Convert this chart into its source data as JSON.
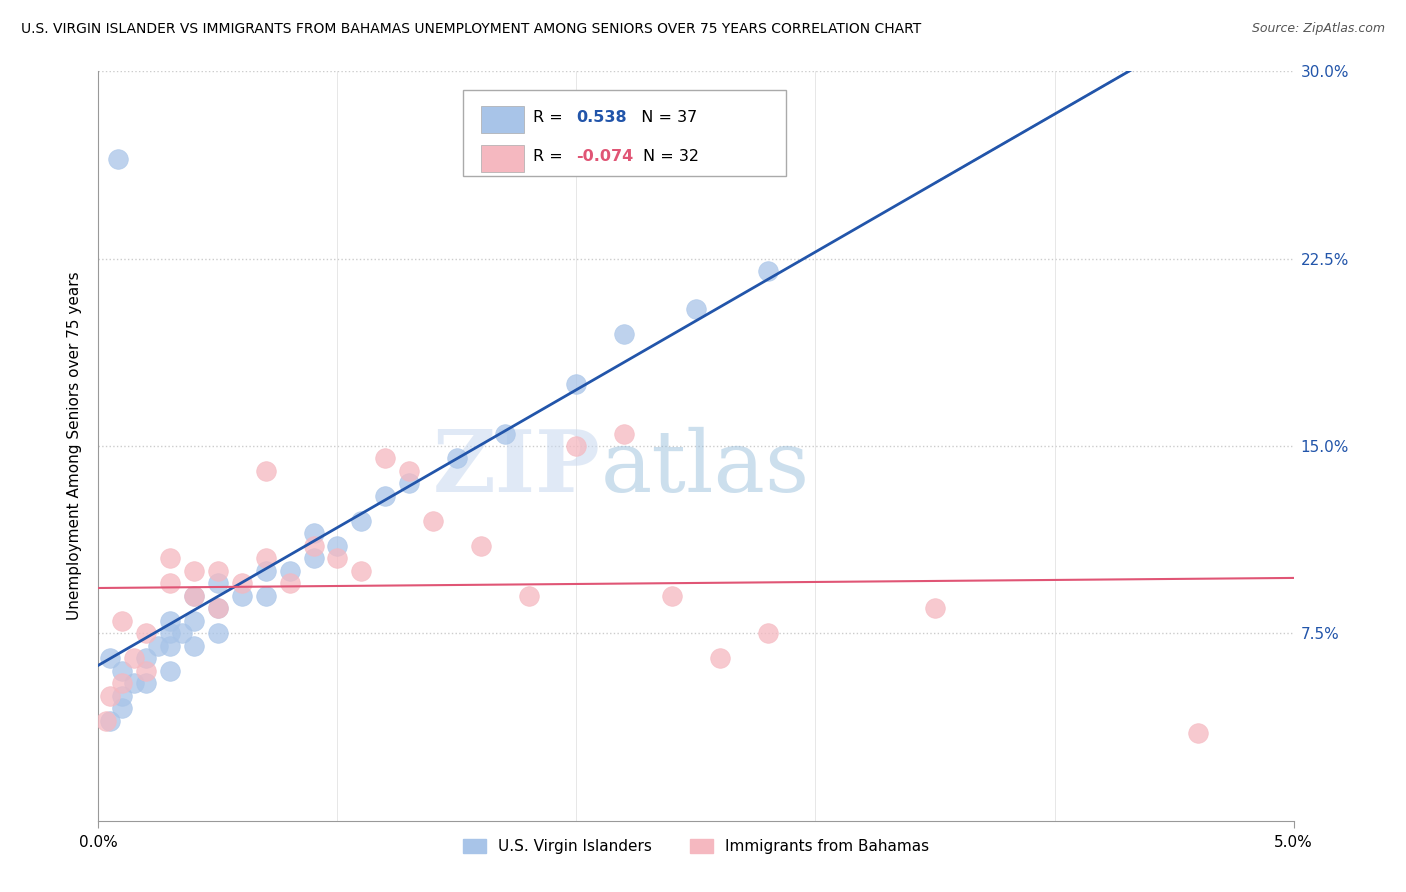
{
  "title": "U.S. VIRGIN ISLANDER VS IMMIGRANTS FROM BAHAMAS UNEMPLOYMENT AMONG SENIORS OVER 75 YEARS CORRELATION CHART",
  "source": "Source: ZipAtlas.com",
  "ylabel": "Unemployment Among Seniors over 75 years",
  "xmin": 0.0,
  "xmax": 0.05,
  "ymin": 0.0,
  "ymax": 0.3,
  "yticks": [
    0.0,
    0.075,
    0.15,
    0.225,
    0.3
  ],
  "ytick_labels": [
    "",
    "7.5%",
    "15.0%",
    "22.5%",
    "30.0%"
  ],
  "xtick_labels": [
    "0.0%",
    "5.0%"
  ],
  "series1_label": "U.S. Virgin Islanders",
  "series1_R": "0.538",
  "series1_N": "37",
  "series1_color": "#a8c4e8",
  "series1_line_color": "#2255aa",
  "series2_label": "Immigrants from Bahamas",
  "series2_R": "-0.074",
  "series2_N": "32",
  "series2_color": "#f5b8c0",
  "series2_line_color": "#e05575",
  "watermark_zip": "ZIP",
  "watermark_atlas": "atlas",
  "blue_x": [
    0.0005,
    0.001,
    0.001,
    0.0015,
    0.001,
    0.0005,
    0.002,
    0.002,
    0.0025,
    0.003,
    0.003,
    0.003,
    0.0035,
    0.003,
    0.004,
    0.004,
    0.004,
    0.005,
    0.005,
    0.005,
    0.006,
    0.007,
    0.007,
    0.008,
    0.009,
    0.009,
    0.01,
    0.011,
    0.012,
    0.013,
    0.015,
    0.017,
    0.02,
    0.022,
    0.025,
    0.028,
    0.0008
  ],
  "blue_y": [
    0.04,
    0.045,
    0.05,
    0.055,
    0.06,
    0.065,
    0.055,
    0.065,
    0.07,
    0.06,
    0.07,
    0.075,
    0.075,
    0.08,
    0.07,
    0.08,
    0.09,
    0.075,
    0.085,
    0.095,
    0.09,
    0.09,
    0.1,
    0.1,
    0.105,
    0.115,
    0.11,
    0.12,
    0.13,
    0.135,
    0.145,
    0.155,
    0.175,
    0.195,
    0.205,
    0.22,
    0.265
  ],
  "pink_x": [
    0.0003,
    0.0005,
    0.001,
    0.001,
    0.0015,
    0.002,
    0.002,
    0.003,
    0.003,
    0.004,
    0.004,
    0.005,
    0.005,
    0.006,
    0.007,
    0.007,
    0.008,
    0.009,
    0.01,
    0.011,
    0.012,
    0.013,
    0.014,
    0.016,
    0.018,
    0.02,
    0.022,
    0.024,
    0.026,
    0.028,
    0.035,
    0.046
  ],
  "pink_y": [
    0.04,
    0.05,
    0.055,
    0.08,
    0.065,
    0.06,
    0.075,
    0.095,
    0.105,
    0.09,
    0.1,
    0.1,
    0.085,
    0.095,
    0.14,
    0.105,
    0.095,
    0.11,
    0.105,
    0.1,
    0.145,
    0.14,
    0.12,
    0.11,
    0.09,
    0.15,
    0.155,
    0.09,
    0.065,
    0.075,
    0.085,
    0.035
  ]
}
